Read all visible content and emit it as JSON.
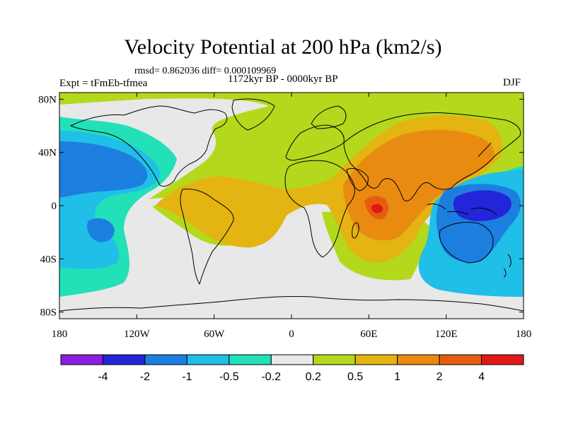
{
  "figure": {
    "title": "Velocity Potential at 200 hPa (km2/s)",
    "stats": "rmsd= 0.862036 diff= 0.000109969",
    "expt": "Expt = tFmEb-tfmea",
    "period": "1172kyr BP - 0000kyr BP",
    "season": "DJF"
  },
  "axes": {
    "y_ticks": [
      "80N",
      "40N",
      "0",
      "40S",
      "80S"
    ],
    "y_values": [
      80,
      40,
      0,
      -40,
      -80
    ],
    "x_ticks": [
      "180",
      "120W",
      "60W",
      "0",
      "60E",
      "120E",
      "180"
    ],
    "x_values": [
      -180,
      -120,
      -60,
      0,
      60,
      120,
      180
    ],
    "lon_range": [
      -180,
      180
    ],
    "lat_range": [
      -85,
      85
    ]
  },
  "colorbar": {
    "labels": [
      "-4",
      "-2",
      "-1",
      "-0.5",
      "-0.2",
      "0.2",
      "0.5",
      "1",
      "2",
      "4"
    ],
    "colors": [
      "#8b1ce0",
      "#2226d8",
      "#1c7fe0",
      "#1fbfe8",
      "#22e0b8",
      "#e8e8e8",
      "#b4d81c",
      "#e3b412",
      "#e88b10",
      "#e85c10",
      "#e01818"
    ]
  }
}
